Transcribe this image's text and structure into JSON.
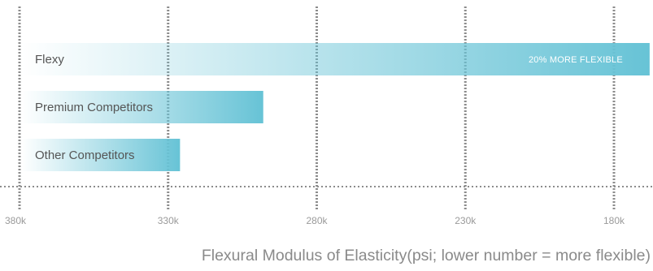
{
  "chart_data": {
    "type": "bar",
    "orientation": "horizontal",
    "categories": [
      "Flexy",
      "Premium Competitors",
      "Other Competitors"
    ],
    "values": [
      168000,
      298000,
      326000
    ],
    "xlim": [
      380000,
      180000
    ],
    "x_ticks": [
      380000,
      330000,
      280000,
      230000,
      180000
    ],
    "x_tick_labels": [
      "380k",
      "330k",
      "280k",
      "230k",
      "180k"
    ],
    "xlabel": "Flexural Modulus of Elasticity(psi; lower number = more flexible)",
    "ylabel": "",
    "title": "",
    "grid": true,
    "bar_color": "#67c3d6",
    "annotations": [
      {
        "category": "Flexy",
        "text": "20% MORE FLEXIBLE"
      }
    ]
  }
}
